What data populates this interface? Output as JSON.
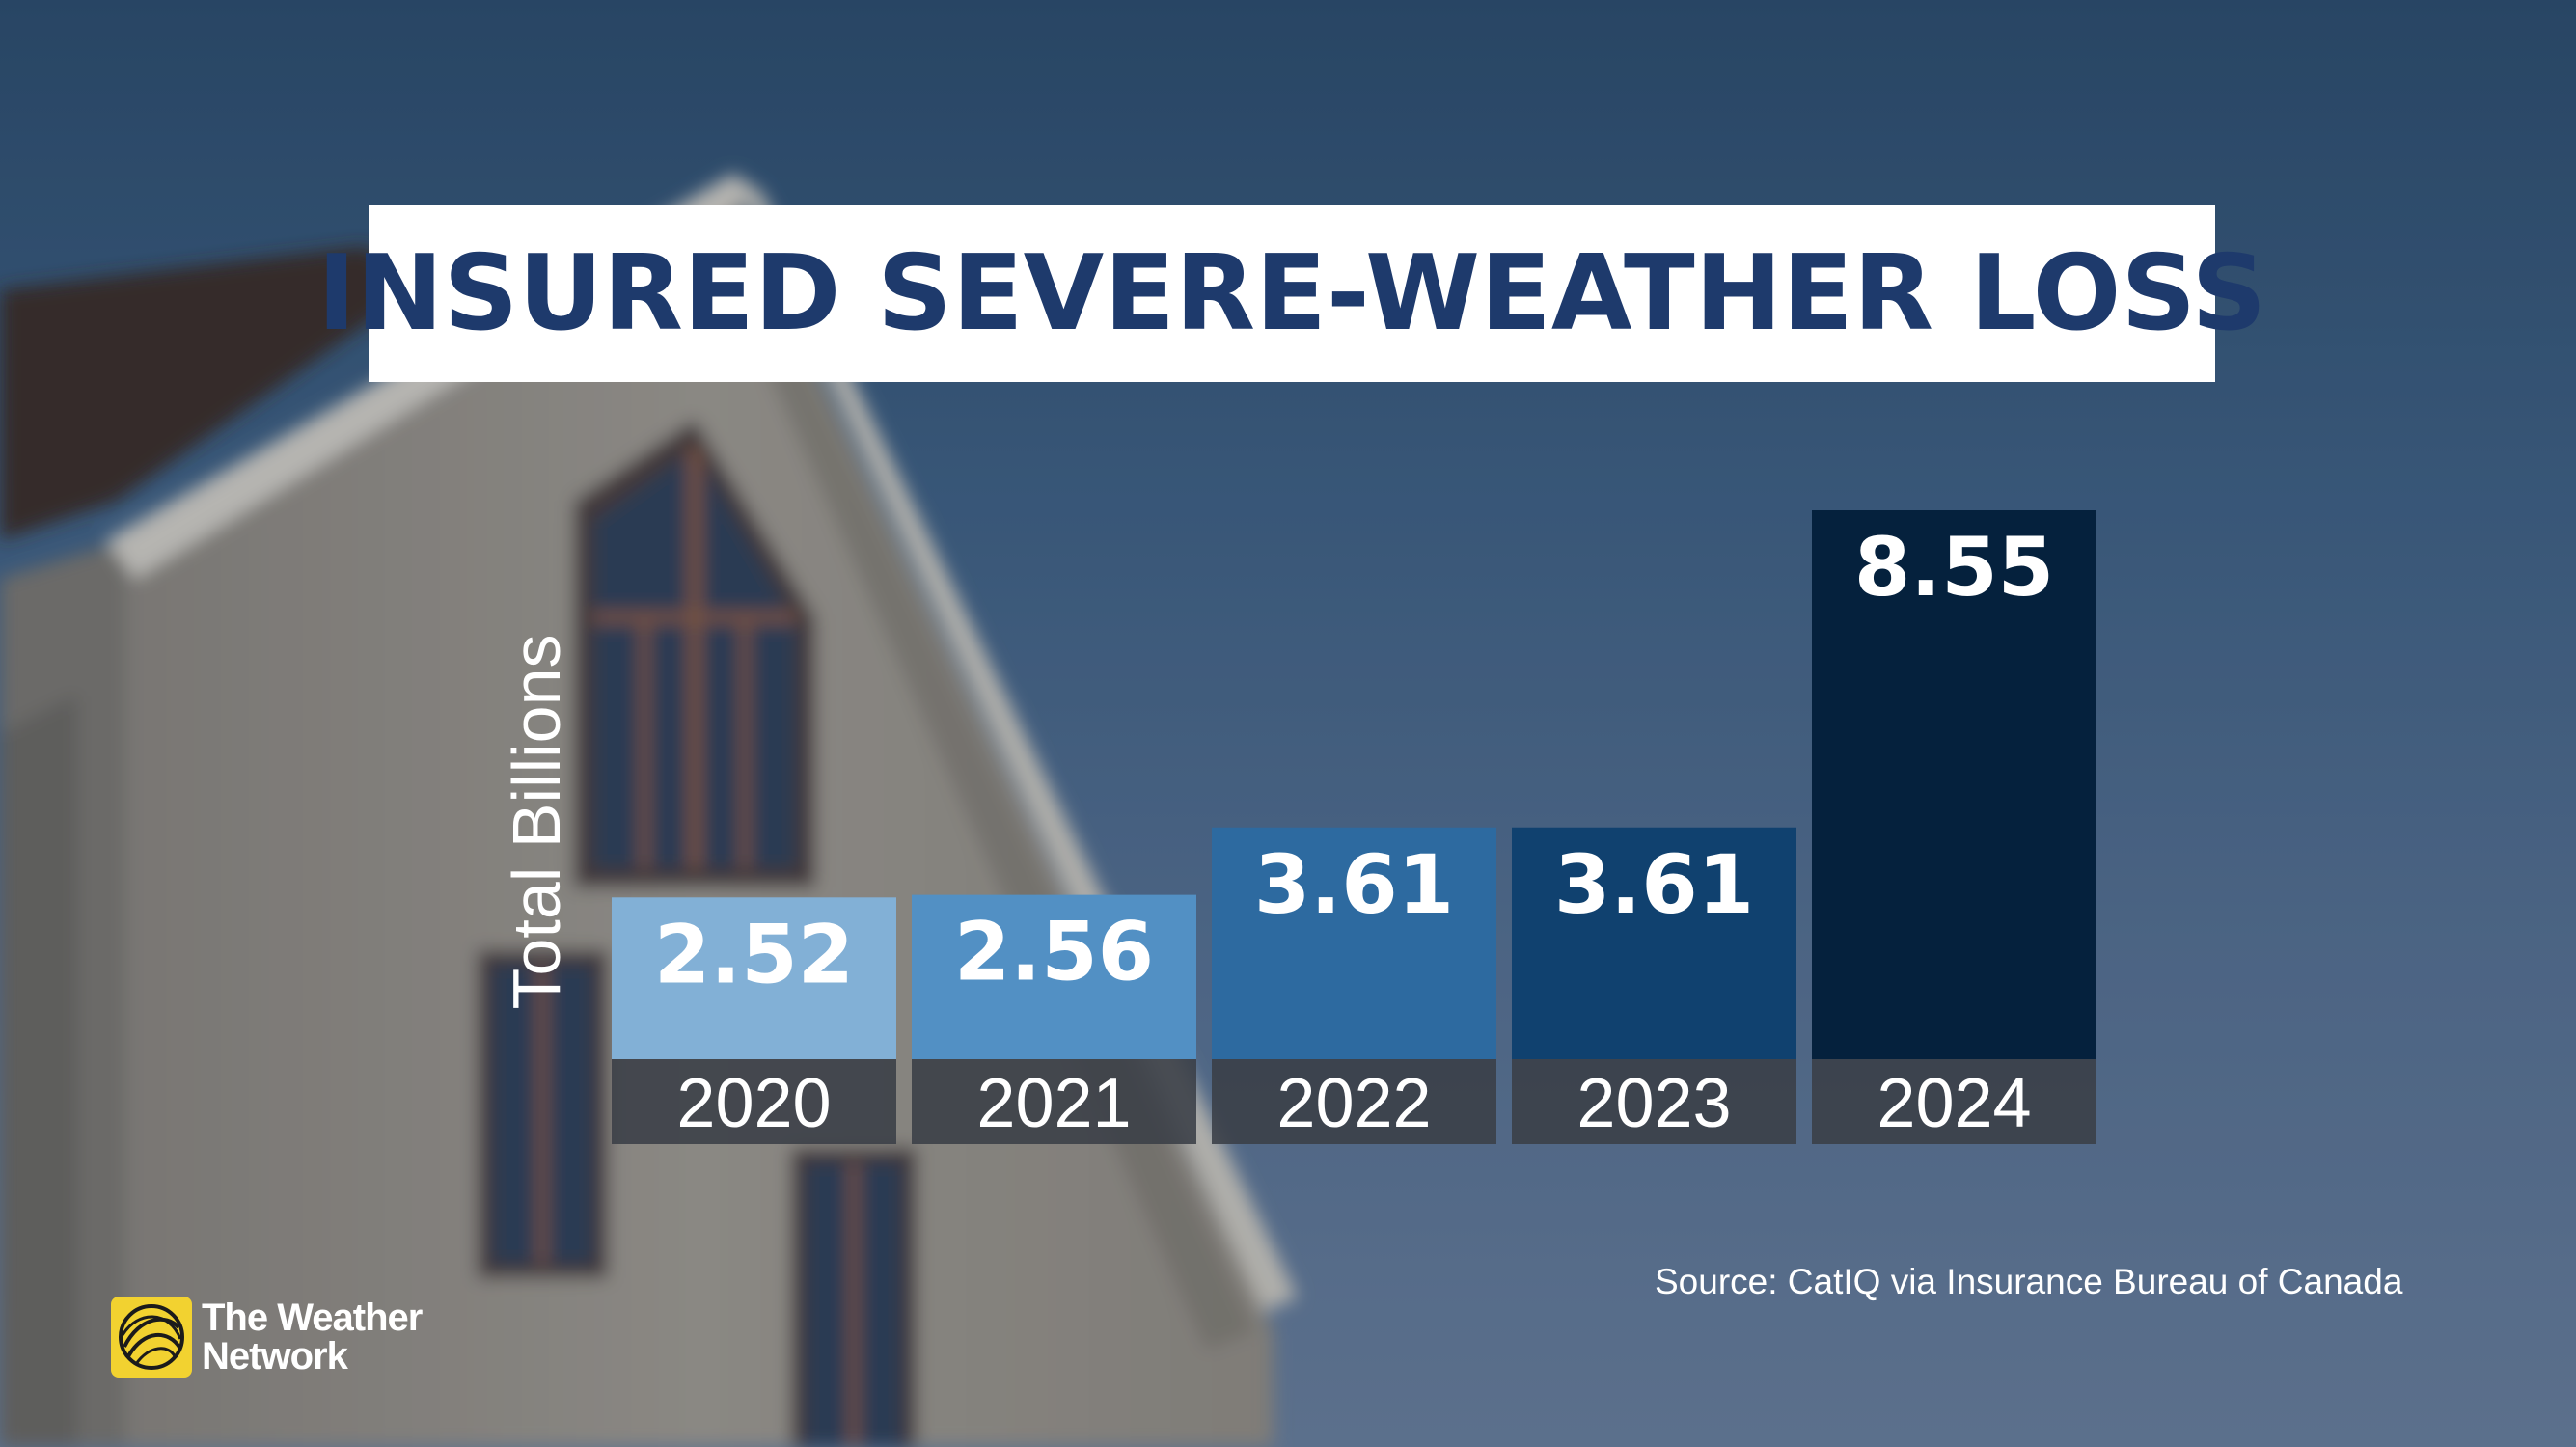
{
  "header": {
    "title": "INSURED SEVERE-WEATHER LOSS"
  },
  "source": "Source: CatIQ via Insurance Bureau of Canada",
  "brand": {
    "line1": "The Weather",
    "line2": "Network",
    "icon": "globe-logo-icon",
    "color": "#f2d230"
  },
  "chart_data": {
    "type": "bar",
    "title": "INSURED SEVERE-WEATHER LOSS",
    "ylabel": "Total Billions",
    "xlabel": "",
    "categories": [
      "2020",
      "2021",
      "2022",
      "2023",
      "2024"
    ],
    "values": [
      2.52,
      2.56,
      3.61,
      3.61,
      8.55
    ],
    "labels": [
      "2.52",
      "2.56",
      "3.61",
      "3.61",
      "8.55"
    ],
    "colors": [
      "#82b0d6",
      "#5290c4",
      "#2d6aa0",
      "#10416f",
      "#05213d"
    ],
    "grid": false,
    "legend": "none"
  }
}
